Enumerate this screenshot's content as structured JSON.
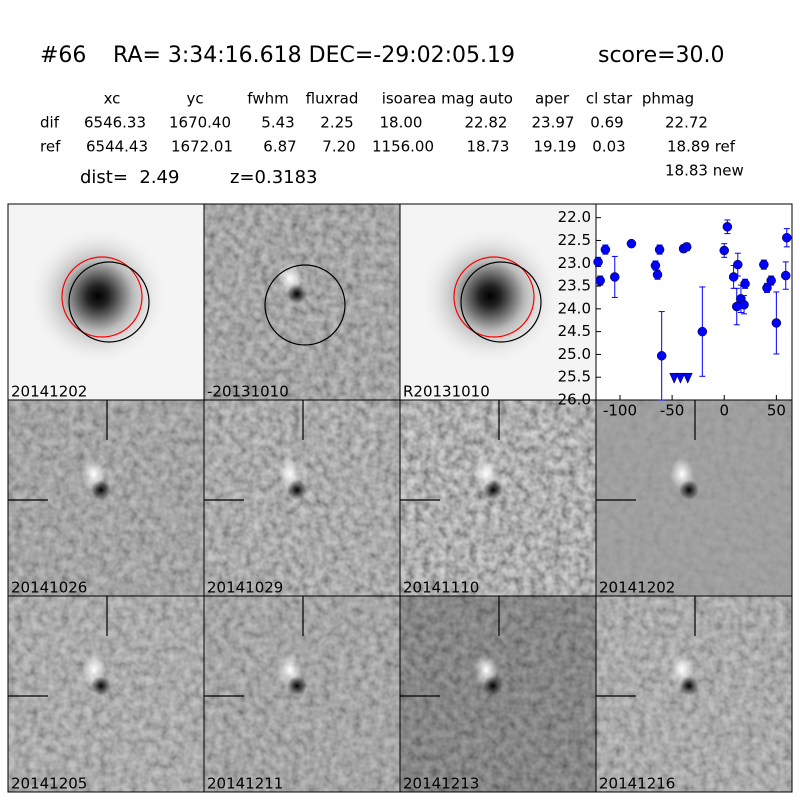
{
  "header": {
    "id": "#66",
    "coords": "RA= 3:34:16.618 DEC=-29:02:05.19",
    "score": "score=30.0"
  },
  "table": {
    "columns": [
      "xc",
      "yc",
      "fwhm",
      "fluxrad",
      "isoarea",
      "mag auto",
      "aper",
      "cl star",
      "phmag"
    ],
    "rows": [
      [
        "dif",
        "6546.33",
        "1670.40",
        "5.43",
        "2.25",
        "18.00",
        "22.82",
        "23.97",
        "0.69",
        "22.72"
      ],
      [
        "ref",
        "6544.43",
        "1672.01",
        "6.87",
        "7.20",
        "1156.00",
        "18.73",
        "19.19",
        "0.03",
        "18.89 ref"
      ]
    ],
    "extra": "18.83 new"
  },
  "summary": {
    "dist": "dist=  2.49",
    "z": "z=0.3183"
  },
  "stamps": [
    {
      "label": "20141202"
    },
    {
      "label": "-20131010"
    },
    {
      "label": "R20131010"
    },
    {
      "label": "20141026"
    },
    {
      "label": "20141029"
    },
    {
      "label": "20141110"
    },
    {
      "label": "20141202",
      "color": "#ff0000"
    },
    {
      "label": "20141205"
    },
    {
      "label": "20141211"
    },
    {
      "label": "20141213"
    },
    {
      "label": "20141216"
    }
  ],
  "chart_data": {
    "type": "errorscatter",
    "color": "#0000ff",
    "x": [
      -121,
      -119,
      -114,
      -105,
      -89,
      -66,
      -64,
      -62,
      -60,
      -39,
      -36,
      -21,
      0,
      3,
      9,
      12,
      13,
      16,
      19,
      20,
      38,
      41,
      45,
      50,
      59,
      60
    ],
    "values": [
      22.97,
      23.38,
      22.7,
      23.3,
      22.57,
      23.05,
      23.25,
      22.7,
      25.03,
      22.68,
      22.64,
      24.5,
      22.72,
      22.2,
      23.3,
      23.95,
      23.03,
      23.78,
      23.91,
      23.45,
      23.03,
      23.54,
      23.38,
      24.31,
      23.27,
      22.44
    ],
    "errors": [
      0.1,
      0.1,
      0.1,
      0.45,
      0.05,
      0.1,
      0.1,
      0.1,
      0.97,
      0.08,
      0.08,
      0.98,
      0.15,
      0.15,
      0.25,
      0.4,
      0.25,
      0.3,
      0.2,
      0.1,
      0.1,
      0.1,
      0.1,
      0.68,
      0.3,
      0.2
    ],
    "limit_x": [
      -48,
      -42,
      -35
    ],
    "limit_values": [
      25.5,
      25.5,
      25.5
    ],
    "xlim": [
      -123,
      65
    ],
    "xticks": [
      -100,
      -50,
      0,
      50
    ],
    "ylim": [
      21.7,
      26
    ],
    "y_inverted": true,
    "yticks": [
      {
        "value": 22,
        "label": "22.0"
      },
      22.5,
      {
        "value": 23,
        "label": "23.0"
      },
      23.5,
      {
        "value": 24,
        "label": "24.0"
      },
      24.5,
      {
        "value": 25,
        "label": "25.0"
      },
      25.5,
      {
        "value": 26,
        "label": "26.0"
      }
    ]
  }
}
